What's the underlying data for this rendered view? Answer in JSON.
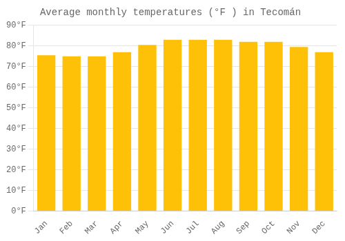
{
  "chart_data": {
    "type": "bar",
    "title": "Average monthly temperatures (°F ) in Tecomán",
    "categories": [
      "Jan",
      "Feb",
      "Mar",
      "Apr",
      "May",
      "Jun",
      "Jul",
      "Aug",
      "Sep",
      "Oct",
      "Nov",
      "Dec"
    ],
    "values": [
      75.5,
      75.0,
      75.0,
      77.0,
      80.5,
      83.0,
      83.0,
      83.0,
      82.0,
      82.0,
      79.5,
      77.0
    ],
    "color": "#FFC107",
    "ylim": [
      0,
      90
    ],
    "yticks": [
      {
        "value": 0,
        "label": "0°F"
      },
      {
        "value": 10,
        "label": "10°F"
      },
      {
        "value": 20,
        "label": "20°F"
      },
      {
        "value": 30,
        "label": "30°F"
      },
      {
        "value": 40,
        "label": "40°F"
      },
      {
        "value": 50,
        "label": "50°F"
      },
      {
        "value": 60,
        "label": "60°F"
      },
      {
        "value": 70,
        "label": "70°F"
      },
      {
        "value": 80,
        "label": "80°F"
      },
      {
        "value": 90,
        "label": "90°F"
      }
    ],
    "grid": true
  }
}
